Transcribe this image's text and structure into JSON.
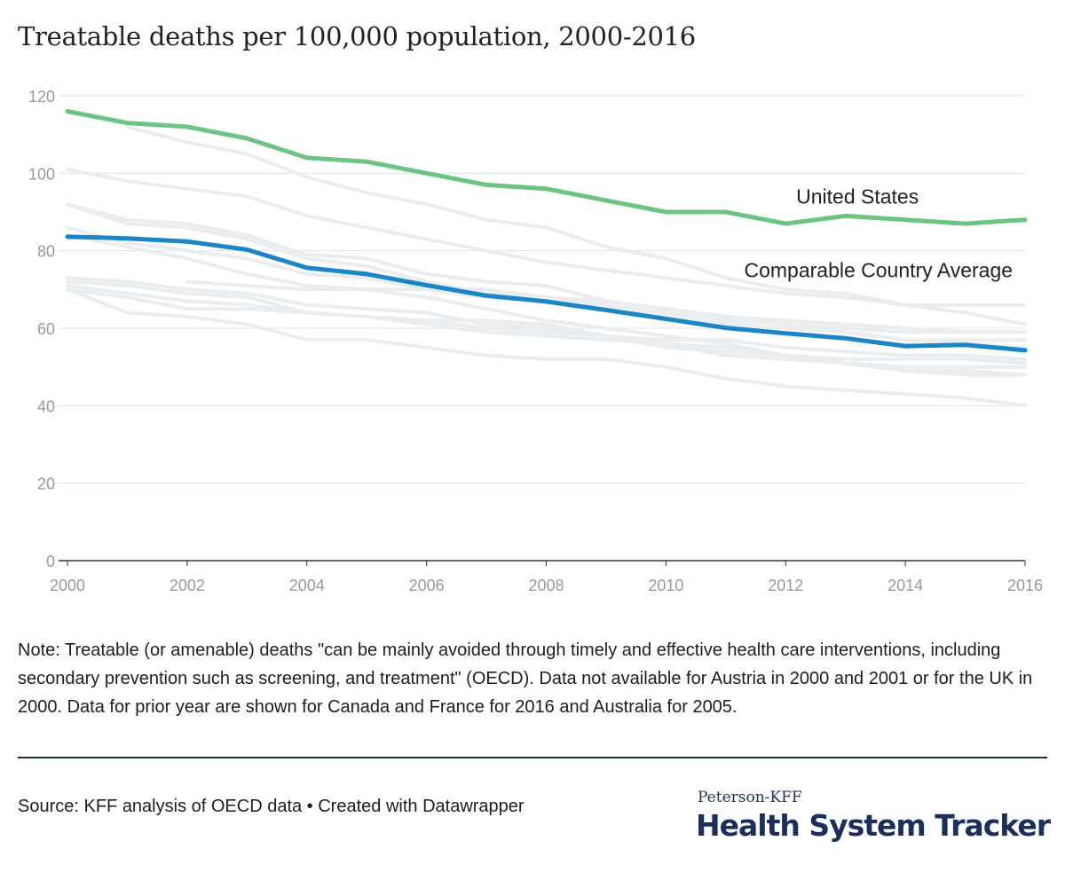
{
  "title": "Treatable deaths per 100,000 population, 2000-2016",
  "note": "Note: Treatable (or amenable) deaths \"can be mainly avoided through timely and effective health care interventions, including secondary prevention such as screening, and treatment\" (OECD). Data not available for Austria in 2000 and 2001 or for the UK in 2000. Data for prior year are shown for Canada and France for 2016 and Australia for 2005.",
  "source": "Source: KFF analysis of OECD data • Created with Datawrapper",
  "brand": {
    "top": "Peterson-KFF",
    "main": "Health System Tracker"
  },
  "colors": {
    "us": "#6cc484",
    "average": "#1a86c8",
    "comparable": "#e9edf0",
    "grid": "#e3e3e3",
    "axis": "#333333",
    "tick_text": "#999999",
    "brand": "#1c2f5c"
  },
  "chart_data": {
    "type": "line",
    "title": "Treatable deaths per 100,000 population, 2000-2016",
    "xlabel": "",
    "ylabel": "",
    "x": [
      2000,
      2001,
      2002,
      2003,
      2004,
      2005,
      2006,
      2007,
      2008,
      2009,
      2010,
      2011,
      2012,
      2013,
      2014,
      2015,
      2016
    ],
    "x_ticks": [
      2000,
      2002,
      2004,
      2006,
      2008,
      2010,
      2012,
      2014,
      2016
    ],
    "y_ticks": [
      0,
      20,
      40,
      60,
      80,
      100,
      120
    ],
    "xlim": [
      2000,
      2016
    ],
    "ylim": [
      0,
      120
    ],
    "grid": "horizontal",
    "legend": "none",
    "highlighted_series": [
      {
        "name": "United States",
        "color": "#6cc484",
        "values": [
          116,
          113,
          112,
          109,
          104,
          103,
          100,
          97,
          96,
          93,
          90,
          90,
          87,
          89,
          88,
          87,
          88
        ]
      },
      {
        "name": "Comparable Country Average",
        "color": "#1a86c8",
        "values": [
          83.6,
          83.2,
          82.4,
          80.3,
          75.6,
          74.0,
          71.1,
          68.4,
          66.9,
          64.7,
          62.4,
          60.1,
          58.7,
          57.4,
          55.4,
          55.7,
          54.3
        ]
      }
    ],
    "background_series": [
      {
        "values": [
          null,
          112,
          108,
          105,
          99,
          95,
          92,
          88,
          86,
          81,
          78,
          73,
          70,
          69,
          66,
          64,
          61
        ]
      },
      {
        "values": [
          101,
          98,
          96,
          94,
          89,
          86,
          83,
          80,
          77,
          75,
          73,
          71,
          69,
          68,
          66,
          66,
          66
        ]
      },
      {
        "values": [
          92,
          88,
          87,
          84,
          79,
          78,
          74,
          72,
          71,
          67,
          65,
          63,
          62,
          61,
          60,
          59,
          59
        ]
      },
      {
        "values": [
          92,
          87,
          86,
          83,
          78,
          76,
          72,
          69,
          68,
          66,
          64,
          62,
          61,
          60,
          59,
          59,
          59
        ]
      },
      {
        "values": [
          86,
          82,
          80,
          78,
          74,
          73,
          70,
          68,
          67,
          65,
          63,
          61,
          60,
          59,
          57,
          57,
          57
        ]
      },
      {
        "values": [
          84,
          81,
          78,
          74,
          71,
          70,
          70,
          70,
          68,
          67,
          65,
          63,
          61,
          59,
          57,
          56,
          55
        ]
      },
      {
        "values": [
          72,
          71,
          69,
          68,
          64,
          63,
          62,
          62,
          61,
          58,
          57,
          57,
          55,
          54,
          53,
          53,
          52
        ]
      },
      {
        "values": [
          70,
          68,
          65,
          65,
          64,
          63,
          62,
          60,
          59,
          58,
          56,
          55,
          53,
          52,
          52,
          52,
          51
        ]
      },
      {
        "values": [
          70,
          64,
          63,
          61,
          57,
          57,
          55,
          53,
          52,
          52,
          50,
          47,
          45,
          44,
          43,
          42,
          40
        ]
      },
      {
        "values": [
          71,
          69,
          67,
          66,
          64,
          63,
          61,
          59,
          58,
          57,
          56,
          53,
          52,
          51,
          50,
          50,
          50
        ]
      },
      {
        "values": [
          null,
          null,
          72,
          71,
          70,
          70,
          68,
          65,
          62,
          60,
          58,
          56,
          53,
          51,
          49,
          49,
          48
        ]
      },
      {
        "values": [
          73,
          72,
          70,
          69,
          66,
          65,
          64,
          61,
          60,
          58,
          55,
          54,
          53,
          51,
          49,
          48,
          48
        ]
      }
    ],
    "annotations": [
      {
        "text": "United States",
        "series": "United States"
      },
      {
        "text": "Comparable Country Average",
        "series": "Comparable Country Average"
      }
    ]
  }
}
